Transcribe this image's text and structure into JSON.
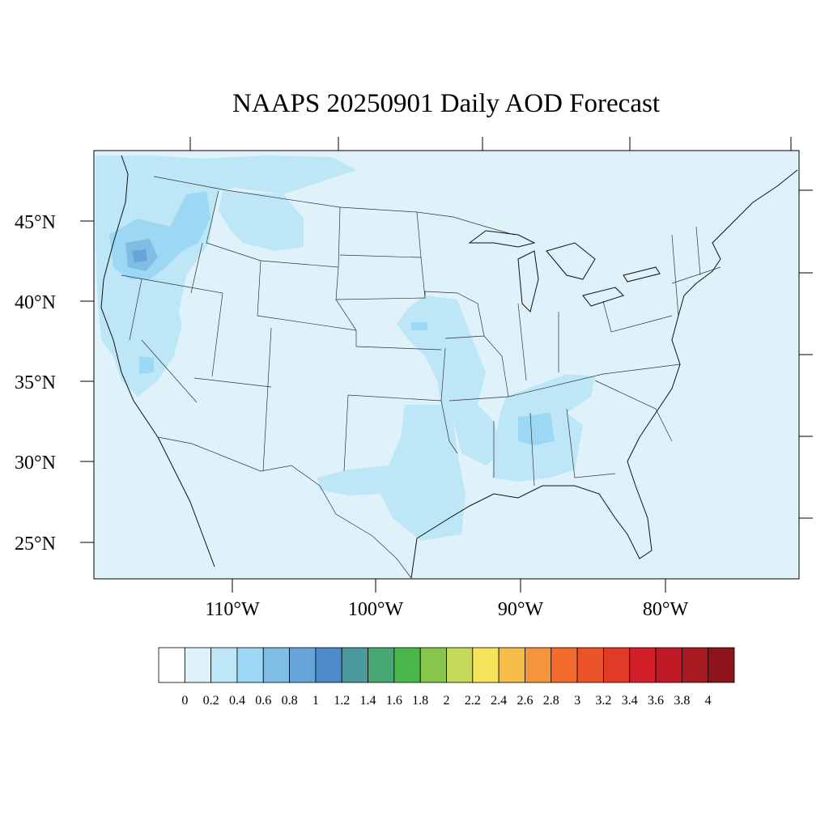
{
  "title": "NAAPS 20250901 Daily AOD Forecast",
  "map": {
    "projection": "Lambert Conformal (CONUS)",
    "lon_range": [
      -125,
      -65
    ],
    "lat_range": [
      23,
      50
    ],
    "background_aod_class": "0-0.2",
    "features": [
      "coastlines",
      "US state boundaries",
      "Canada provinces",
      "Mexico border",
      "Great Lakes"
    ],
    "aod_regions": [
      {
        "area": "Pacific Northwest / Oregon",
        "value_range": "0.2-1.0",
        "peak": "0.8-1"
      },
      {
        "area": "Northern Idaho / Western Montana",
        "value_range": "0.2-0.6"
      },
      {
        "area": "Northern Nevada / Central Valley California",
        "value_range": "0.2-0.6"
      },
      {
        "area": "Nebraska / Iowa / Missouri / Arkansas",
        "value_range": "0.2-0.6"
      },
      {
        "area": "Texas / Louisiana Gulf coast",
        "value_range": "0.2-0.4"
      },
      {
        "area": "Mississippi / Alabama / Tennessee",
        "value_range": "0.2-0.6"
      }
    ]
  },
  "axes": {
    "lat_labels": [
      "45°N",
      "40°N",
      "35°N",
      "30°N",
      "25°N"
    ],
    "lon_labels": [
      "110°W",
      "100°W",
      "90°W",
      "80°W"
    ]
  },
  "colorbar": {
    "labels": [
      "0",
      "0.2",
      "0.4",
      "0.6",
      "0.8",
      "1",
      "1.2",
      "1.4",
      "1.6",
      "1.8",
      "2",
      "2.2",
      "2.4",
      "2.6",
      "2.8",
      "3",
      "3.2",
      "3.4",
      "3.6",
      "3.8",
      "4"
    ],
    "colors": [
      "#ffffff",
      "#dff2fa",
      "#bde6f7",
      "#9cd7f3",
      "#7fbde5",
      "#66a4da",
      "#4c8ac9",
      "#4a9a9e",
      "#47a772",
      "#49b649",
      "#87c54d",
      "#c4d85a",
      "#f6e35c",
      "#f7bd4b",
      "#f6963c",
      "#f36c2e",
      "#eb5328",
      "#e03b27",
      "#d21f29",
      "#c01a27",
      "#a81a22",
      "#8e141b"
    ]
  }
}
